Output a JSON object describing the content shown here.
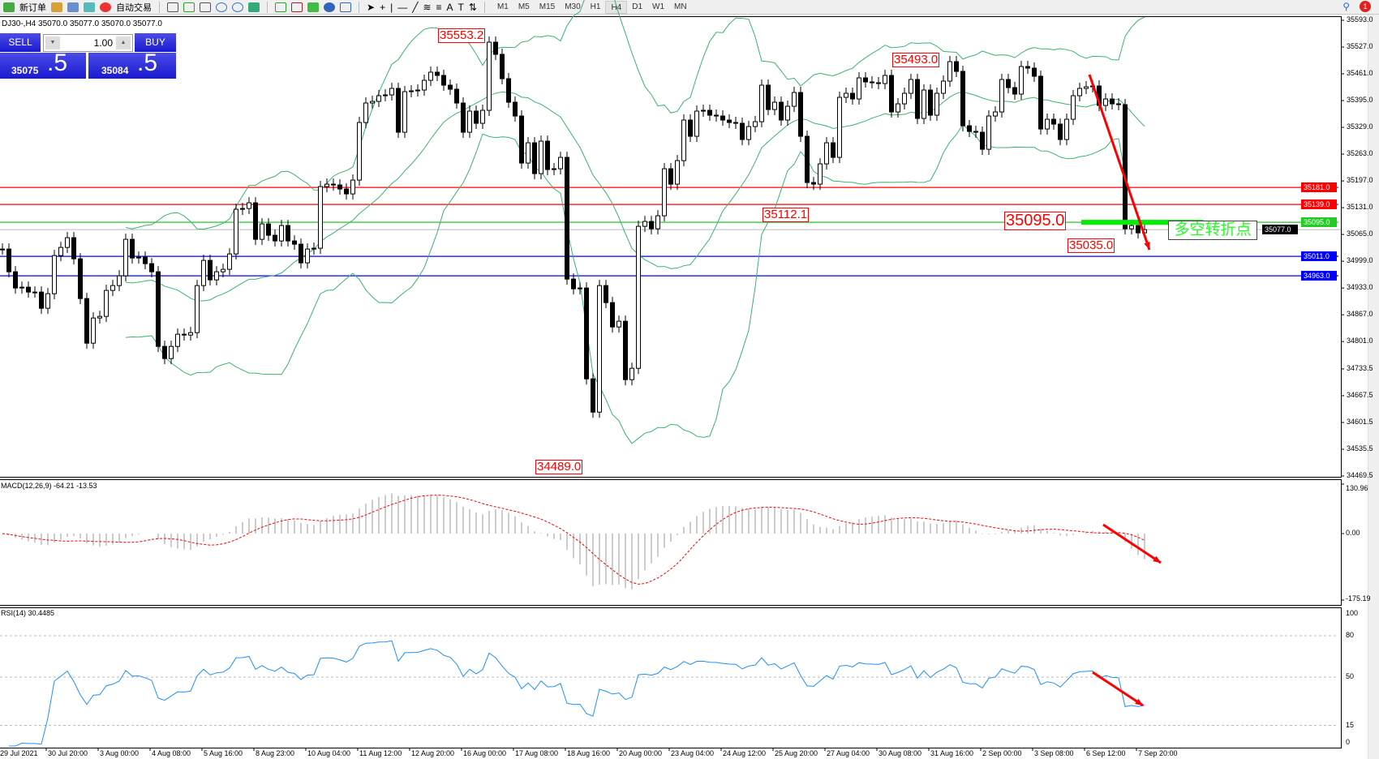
{
  "toolbar": {
    "new_order": "新订单",
    "auto_trading": "自动交易",
    "timeframes": [
      "M1",
      "M5",
      "M15",
      "M30",
      "H1",
      "H4",
      "D1",
      "W1",
      "MN"
    ],
    "active_timeframe": "H4",
    "alert_count": "1"
  },
  "symbol_info": "DJ30-,H4  35070.0 35077.0 35070.0 35077.0",
  "trade_panel": {
    "sell_label": "SELL",
    "buy_label": "BUY",
    "lot": "1.00",
    "sell_main": "35075",
    "sell_big": ".5",
    "buy_main": "35084",
    "buy_big": ".5",
    "color": "#2222d8"
  },
  "price_axis": [
    "35593.0",
    "35527.0",
    "35461.0",
    "35395.0",
    "35329.0",
    "35263.0",
    "35197.0",
    "35131.0",
    "35065.0",
    "34999.0",
    "34933.0",
    "34867.0",
    "34801.0",
    "34733.5",
    "34667.5",
    "34601.5",
    "34535.5",
    "34469.5"
  ],
  "levels": [
    {
      "value": "35181.0",
      "color": "#ff0000"
    },
    {
      "value": "35139.0",
      "color": "#ff0000"
    },
    {
      "value": "35095.0",
      "color": "#22cc22"
    },
    {
      "value": "35011.0",
      "color": "#0000ff"
    },
    {
      "value": "34963.0",
      "color": "#0000ff"
    }
  ],
  "bid_tag": "35077.0",
  "annotations": {
    "high": "35553.2",
    "low": "34489.0",
    "high2": "35493.0",
    "low2": "35112.1",
    "pivot": "35095.0",
    "last_low": "35035.0",
    "pivot_text": "多空转折点"
  },
  "macd": {
    "title": "MACD(12,26,9) -64.21 -13.53",
    "axis": [
      "130.96",
      "0.00",
      "-175.19"
    ]
  },
  "rsi": {
    "title": "RSI(14) 30.4485",
    "axis": [
      "100",
      "80",
      "50",
      "15",
      "0"
    ]
  },
  "time_axis": [
    "29 Jul 2021",
    "30 Jul 20:00",
    "3 Aug 00:00",
    "4 Aug 08:00",
    "5 Aug 16:00",
    "8 Aug 23:00",
    "10 Aug 04:00",
    "11 Aug 12:00",
    "12 Aug 20:00",
    "16 Aug 00:00",
    "17 Aug 08:00",
    "18 Aug 16:00",
    "20 Aug 00:00",
    "23 Aug 04:00",
    "24 Aug 12:00",
    "25 Aug 20:00",
    "27 Aug 04:00",
    "30 Aug 08:00",
    "31 Aug 16:00",
    "2 Sep 00:00",
    "3 Sep 08:00",
    "6 Sep 12:00",
    "7 Sep 20:00"
  ],
  "chart_data": {
    "type": "candlestick",
    "symbol": "DJ30-",
    "timeframe": "H4",
    "ylim": [
      34469.5,
      35593.0
    ],
    "indicators": [
      "Bollinger Bands",
      "MACD(12,26,9)",
      "RSI(14)"
    ],
    "colors": {
      "bands": "#3cb371",
      "levels_red": "#ff0000",
      "levels_blue": "#0000ff",
      "pivot": "#00ee00",
      "arrow": "#ff0000"
    },
    "closes": [
      35029,
      34973,
      34933,
      34935,
      34923,
      34923,
      34883,
      34919,
      35013,
      35033,
      35057,
      35005,
      34907,
      34797,
      34859,
      34863,
      34927,
      34939,
      34963,
      35053,
      35007,
      35009,
      34993,
      34973,
      34789,
      34759,
      34789,
      34819,
      34817,
      34823,
      34939,
      35001,
      34953,
      34973,
      34979,
      35017,
      35127,
      35129,
      35143,
      35053,
      35091,
      35063,
      35049,
      35087,
      35049,
      35041,
      34995,
      35029,
      35031,
      35183,
      35189,
      35187,
      35177,
      35165,
      35199,
      35341,
      35389,
      35393,
      35407,
      35409,
      35425,
      35317,
      35417,
      35419,
      35421,
      35445,
      35465,
      35457,
      35433,
      35423,
      35389,
      35317,
      35369,
      35339,
      35371,
      35539,
      35509,
      35449,
      35391,
      35357,
      35241,
      35291,
      35215,
      35295,
      35225,
      35227,
      35255,
      34955,
      34931,
      34933,
      34709,
      34627,
      34939,
      34897,
      34837,
      34851,
      34707,
      34735,
      35085,
      35097,
      35079,
      35111,
      35227,
      35189,
      35247,
      35347,
      35307,
      35369,
      35371,
      35359,
      35357,
      35347,
      35341,
      35339,
      35299,
      35331,
      35343,
      35433,
      35373,
      35391,
      35347,
      35381,
      35415,
      35307,
      35193,
      35189,
      35239,
      35291,
      35255,
      35403,
      35413,
      35399,
      35451,
      35441,
      35439,
      35437,
      35457,
      35367,
      35387,
      35413,
      35447,
      35351,
      35421,
      35359,
      35413,
      35443,
      35491,
      35467,
      35333,
      35319,
      35317,
      35275,
      35357,
      35367,
      35447,
      35427,
      35411,
      35479,
      35475,
      35455,
      35325,
      35349,
      35337,
      35299,
      35349,
      35407,
      35425,
      35429,
      35431,
      35383,
      35399,
      35387,
      35385,
      35079,
      35087,
      35069,
      35077
    ]
  }
}
